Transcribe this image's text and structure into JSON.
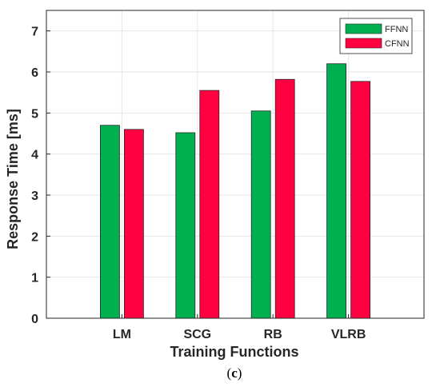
{
  "chart_data": {
    "type": "bar",
    "categories": [
      "LM",
      "SCG",
      "RB",
      "VLRB"
    ],
    "series": [
      {
        "name": "FFNN",
        "values": [
          4.7,
          4.52,
          5.05,
          6.2
        ],
        "color": "#00B050"
      },
      {
        "name": "CFNN",
        "values": [
          4.6,
          5.55,
          5.82,
          5.77
        ],
        "color": "#FF0040"
      }
    ],
    "xlabel": "Training Functions",
    "ylabel": "Response Time [ms]",
    "ylim": [
      0,
      7.5
    ],
    "yticks": [
      "0",
      "1",
      "2",
      "3",
      "4",
      "5",
      "6",
      "7"
    ],
    "grid": true,
    "legend_position": "top-right"
  },
  "caption": {
    "open": "(",
    "letter": "c",
    "close": ")"
  }
}
